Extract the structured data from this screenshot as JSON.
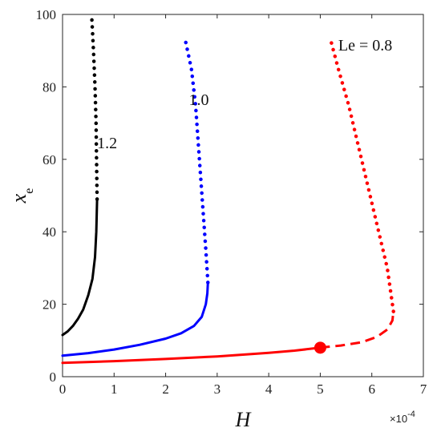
{
  "chart_data": {
    "type": "line",
    "xlabel": "H",
    "ylabel_main": "x",
    "ylabel_sub": "e",
    "x_exponent_label": "×10",
    "x_exponent_power": "-4",
    "xlim": [
      0,
      7
    ],
    "ylim": [
      0,
      100
    ],
    "x_ticks": [
      0,
      1,
      2,
      3,
      4,
      5,
      6,
      7
    ],
    "y_ticks": [
      0,
      20,
      40,
      60,
      80,
      100
    ],
    "grid": false,
    "legend": "none",
    "series": [
      {
        "name": "1.2",
        "color": "#000000",
        "label_pos": [
          0.67,
          63
        ],
        "segments": [
          {
            "style": "solid",
            "points": [
              [
                0.0,
                11.5
              ],
              [
                0.1,
                12.5
              ],
              [
                0.2,
                14.0
              ],
              [
                0.3,
                16.0
              ],
              [
                0.4,
                18.5
              ],
              [
                0.5,
                22.5
              ],
              [
                0.58,
                27.0
              ],
              [
                0.63,
                33.0
              ],
              [
                0.655,
                40.0
              ],
              [
                0.67,
                49.0
              ]
            ]
          },
          {
            "style": "dotted",
            "points": [
              [
                0.67,
                49.0
              ],
              [
                0.66,
                60.0
              ],
              [
                0.65,
                70.0
              ],
              [
                0.63,
                80.0
              ],
              [
                0.6,
                90.0
              ],
              [
                0.57,
                98.5
              ]
            ]
          }
        ]
      },
      {
        "name": "1.0",
        "color": "#0000FF",
        "label_pos": [
          2.45,
          75
        ],
        "segments": [
          {
            "style": "solid",
            "points": [
              [
                0.0,
                5.8
              ],
              [
                0.5,
                6.5
              ],
              [
                1.0,
                7.5
              ],
              [
                1.5,
                8.8
              ],
              [
                2.0,
                10.5
              ],
              [
                2.3,
                12.0
              ],
              [
                2.55,
                14.0
              ],
              [
                2.7,
                16.5
              ],
              [
                2.78,
                20.0
              ],
              [
                2.81,
                23.0
              ],
              [
                2.82,
                26.0
              ]
            ]
          },
          {
            "style": "dotted",
            "points": [
              [
                2.82,
                26.0
              ],
              [
                2.78,
                35.0
              ],
              [
                2.73,
                45.0
              ],
              [
                2.68,
                55.0
              ],
              [
                2.63,
                65.0
              ],
              [
                2.58,
                75.0
              ],
              [
                2.5,
                85.0
              ],
              [
                2.38,
                93.0
              ]
            ]
          }
        ]
      },
      {
        "name": "Le = 0.8",
        "color": "#FF0000",
        "label_pos": [
          5.35,
          90
        ],
        "marker": [
          5.0,
          8.0
        ],
        "segments": [
          {
            "style": "solid",
            "points": [
              [
                0.0,
                3.8
              ],
              [
                1.0,
                4.3
              ],
              [
                2.0,
                4.9
              ],
              [
                3.0,
                5.6
              ],
              [
                4.0,
                6.6
              ],
              [
                4.5,
                7.2
              ],
              [
                5.0,
                8.0
              ]
            ]
          },
          {
            "style": "dashed",
            "points": [
              [
                5.0,
                8.0
              ],
              [
                5.4,
                8.6
              ],
              [
                5.8,
                9.5
              ],
              [
                6.1,
                11.0
              ],
              [
                6.3,
                13.0
              ],
              [
                6.4,
                15.5
              ],
              [
                6.42,
                18.0
              ]
            ]
          },
          {
            "style": "dotted",
            "points": [
              [
                6.42,
                18.0
              ],
              [
                6.3,
                30.0
              ],
              [
                6.05,
                45.0
              ],
              [
                5.8,
                60.0
              ],
              [
                5.55,
                75.0
              ],
              [
                5.35,
                85.0
              ],
              [
                5.2,
                93.0
              ]
            ]
          }
        ]
      }
    ]
  }
}
